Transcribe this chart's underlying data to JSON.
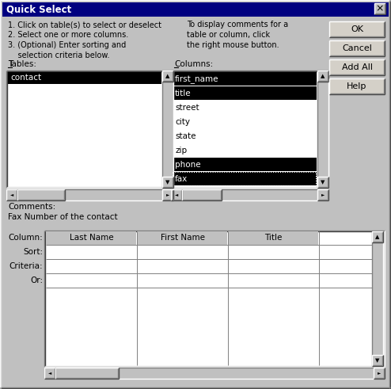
{
  "title": "Quick Select",
  "bg_color": "#c0c0c0",
  "title_bar_color": "#000080",
  "title_text_color": "#ffffff",
  "instructions": [
    "1. Click on table(s) to select or deselect",
    "2. Select one or more columns.",
    "3. (Optional) Enter sorting and",
    "    selection criteria below."
  ],
  "right_instructions": [
    "To display comments for a",
    "table or column, click",
    "the right mouse button."
  ],
  "tables_label": "Tables:",
  "tables_items": [
    "contact"
  ],
  "columns_label": "Columns:",
  "columns_items": [
    "first_name",
    "title",
    "street",
    "city",
    "state",
    "zip",
    "phone",
    "fax"
  ],
  "columns_selected": [
    0,
    1,
    6,
    7
  ],
  "columns_focused": 7,
  "comments_label": "Comments:",
  "comments_text": "Fax Number of the contact",
  "buttons": [
    "OK",
    "Cancel",
    "Add All",
    "Help"
  ],
  "grid_row_labels": [
    "Column:",
    "Sort:",
    "Criteria:",
    "Or:"
  ],
  "grid_columns": [
    "Last Name",
    "First Name",
    "Title"
  ],
  "white": "#ffffff",
  "black": "#000000",
  "gray": "#808080",
  "light_gray": "#c0c0c0",
  "dark": "#404040"
}
